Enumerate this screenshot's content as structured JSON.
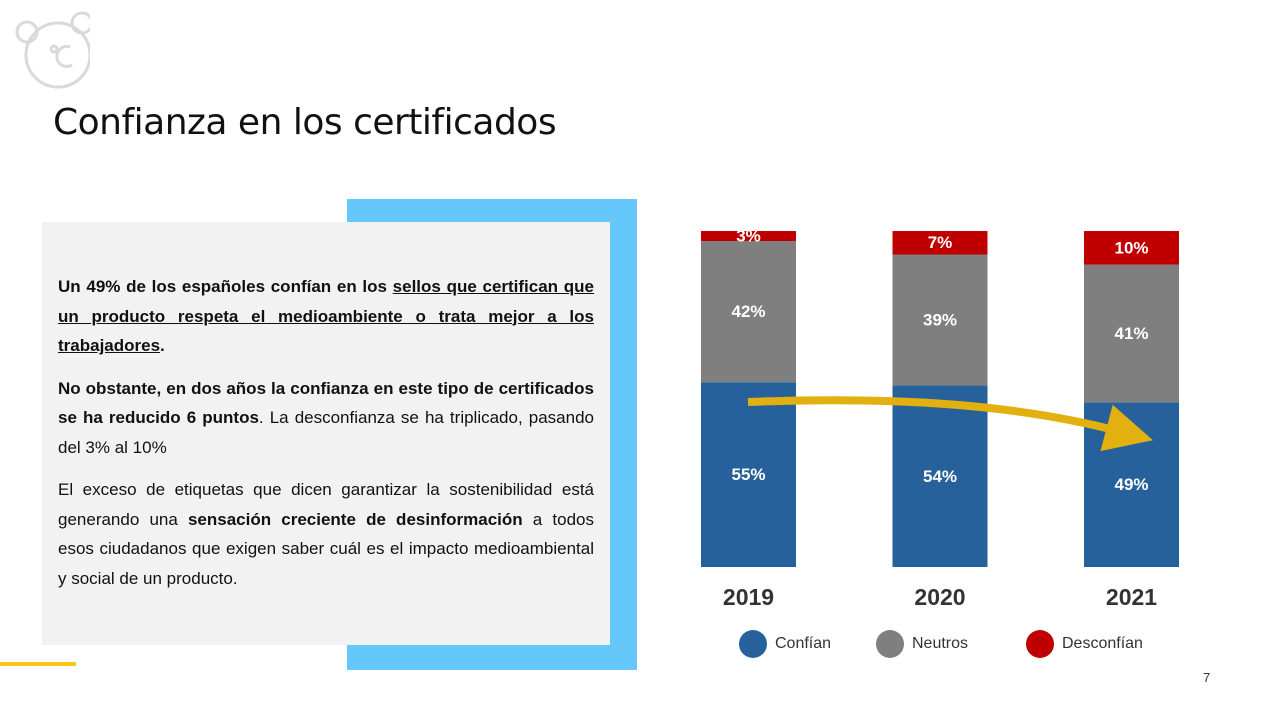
{
  "title": "Confianza en los certificados",
  "paragraphs": [
    [
      "Un 49% de los españoles confían en los ",
      "sellos que certifican que un producto respeta el medioambiente o trata mejor a los trabajadores",
      "."
    ],
    [
      "No obstante, en dos años la confianza en este tipo de certificados se ha reducido 6 puntos",
      ". La desconfianza se ha triplicado, pasando del 3% al 10%"
    ],
    [
      "El exceso de etiquetas que dicen garantizar la sostenibilidad está generando una ",
      "sensación creciente de desinformación",
      " a todos esos ciudadanos que exigen saber cuál es el impacto medioambiental y social de un producto."
    ]
  ],
  "page_number": "7",
  "chart_data": {
    "type": "stacked_bar",
    "categories": [
      "2019",
      "2020",
      "2021"
    ],
    "series": [
      {
        "name": "Confían",
        "color": "#26619c",
        "values": [
          55,
          54,
          49
        ],
        "value_labels": [
          "55%",
          "54%",
          "49%"
        ]
      },
      {
        "name": "Neutros",
        "color": "#7f7f7f",
        "values": [
          42,
          39,
          41
        ],
        "value_labels": [
          "42%",
          "39%",
          "41%"
        ]
      },
      {
        "name": "Desconfían",
        "color": "#c00000",
        "values": [
          3,
          7,
          10
        ],
        "value_labels": [
          "3%",
          "7%",
          "10%"
        ]
      }
    ],
    "legend": "bottom"
  }
}
